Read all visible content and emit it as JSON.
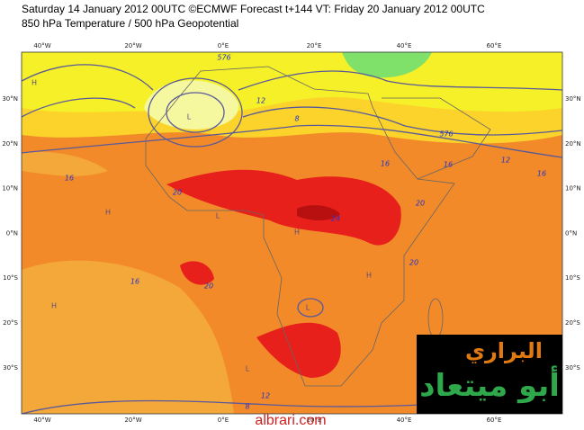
{
  "header": {
    "line1": "Saturday 14 January 2012 00UTC ©ECMWF Forecast t+144 VT: Friday 20 January 2012 00UTC",
    "line2": "850 hPa Temperature / 500 hPa Geopotential"
  },
  "axes": {
    "lon_labels": [
      "40°W",
      "20°W",
      "0°E",
      "20°E",
      "40°E",
      "60°E"
    ],
    "lat_labels": [
      "30°N",
      "20°N",
      "10°N",
      "0°N",
      "10°S",
      "20°S",
      "30°S"
    ]
  },
  "contour_labels": [
    "576",
    "12",
    "8",
    "16",
    "20",
    "24",
    "20",
    "20",
    "16",
    "20",
    "16",
    "16",
    "576",
    "12",
    "8",
    "12",
    "16"
  ],
  "symbols": [
    "H",
    "L"
  ],
  "logo": {
    "line1": "البراري",
    "line2": "أبو ميتعاد"
  },
  "site": "albrari.com"
}
